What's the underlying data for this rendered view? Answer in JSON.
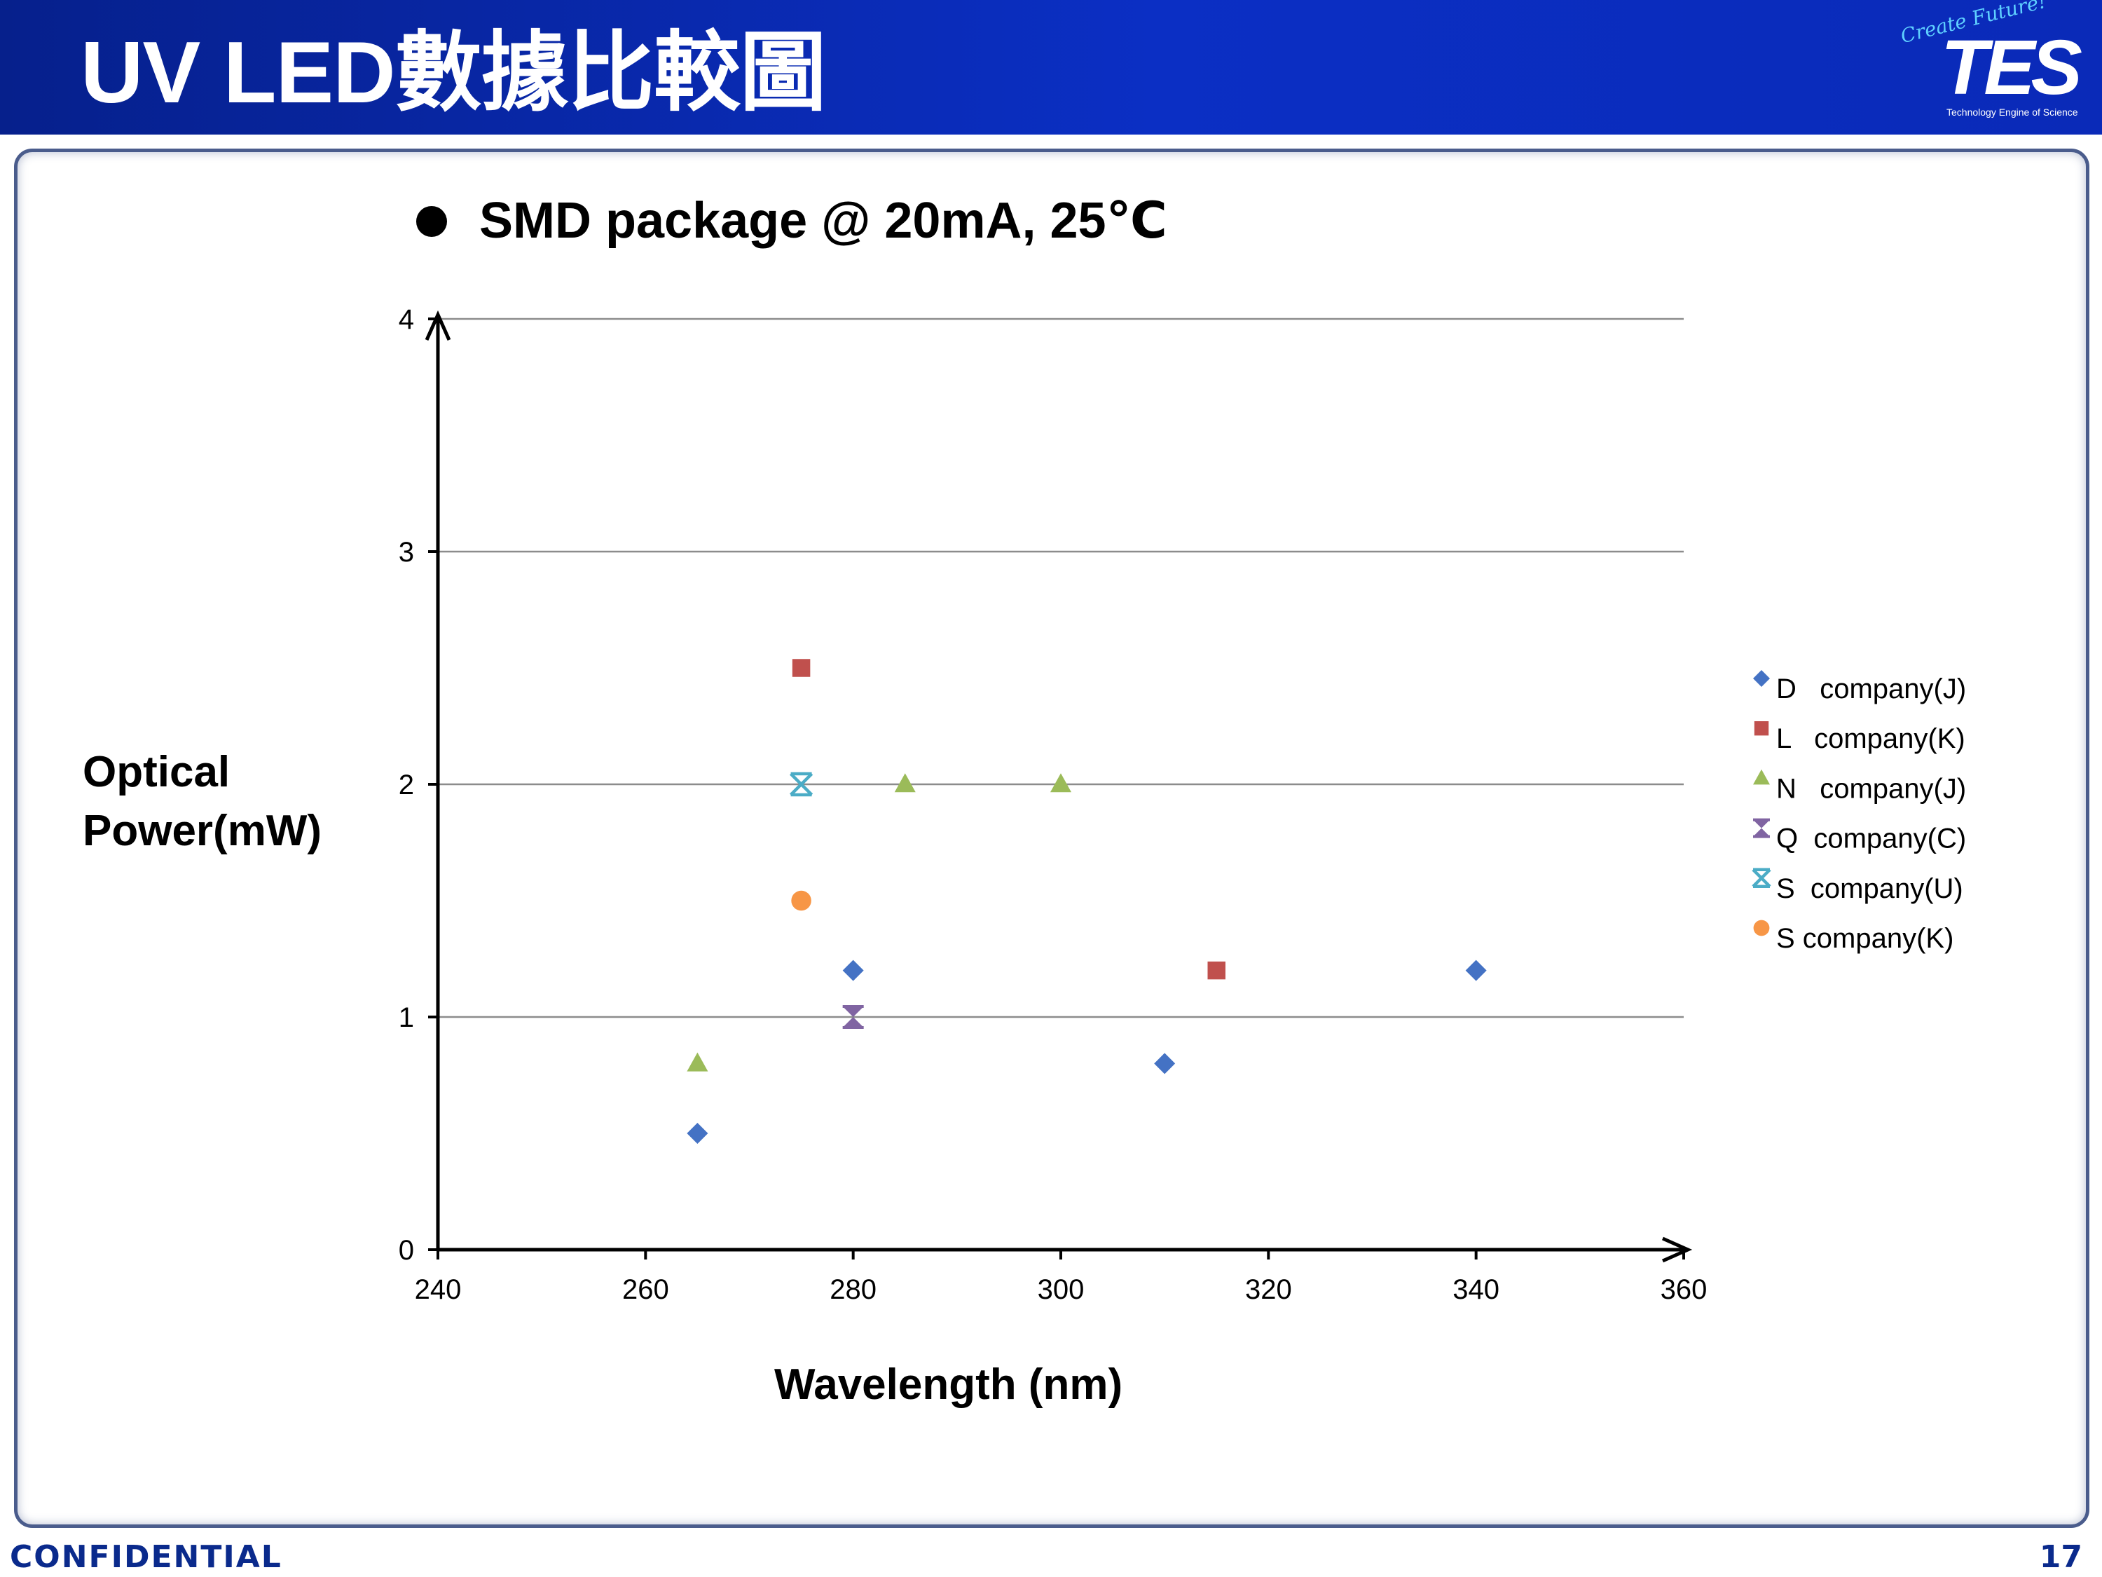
{
  "slide": {
    "title": "UV LED數據比較圖",
    "logo": {
      "slogan": "Create Future!",
      "name": "TES",
      "tagline": "Technology Engine of Science"
    },
    "subtitle": "SMD package @ 20mA, 25℃",
    "footer": {
      "confidential": "CONFIDENTIAL",
      "page_number": "17"
    }
  },
  "chart_data": {
    "type": "scatter",
    "title": "",
    "xlabel": "Wavelength (nm)",
    "ylabel": "Optical\nPower(mW)",
    "xlim": [
      240,
      360
    ],
    "ylim": [
      0,
      4
    ],
    "x_ticks": [
      240,
      260,
      280,
      300,
      320,
      340,
      360
    ],
    "y_ticks": [
      0,
      1,
      2,
      3,
      4
    ],
    "grid": "horizontal",
    "legend": "right",
    "series": [
      {
        "name": "D   company(J)",
        "marker": "diamond",
        "color": "#4472C4",
        "points": [
          [
            265,
            0.5
          ],
          [
            280,
            1.2
          ],
          [
            310,
            0.8
          ],
          [
            340,
            1.2
          ]
        ]
      },
      {
        "name": "L   company(K)",
        "marker": "square",
        "color": "#C0504D",
        "points": [
          [
            275,
            2.5
          ],
          [
            315,
            1.2
          ]
        ]
      },
      {
        "name": "N   company(J)",
        "marker": "triangle",
        "color": "#9BBB59",
        "points": [
          [
            265,
            0.8
          ],
          [
            285,
            2.0
          ],
          [
            300,
            2.0
          ]
        ]
      },
      {
        "name": "Q  company(C)",
        "marker": "hourglass",
        "color": "#8064A2",
        "points": [
          [
            280,
            1.0
          ]
        ]
      },
      {
        "name": "S  company(U)",
        "marker": "star-x",
        "color": "#4BACC6",
        "points": [
          [
            275,
            2.0
          ]
        ]
      },
      {
        "name": "S company(K)",
        "marker": "circle",
        "color": "#F79646",
        "points": [
          [
            275,
            1.5
          ]
        ]
      }
    ]
  }
}
